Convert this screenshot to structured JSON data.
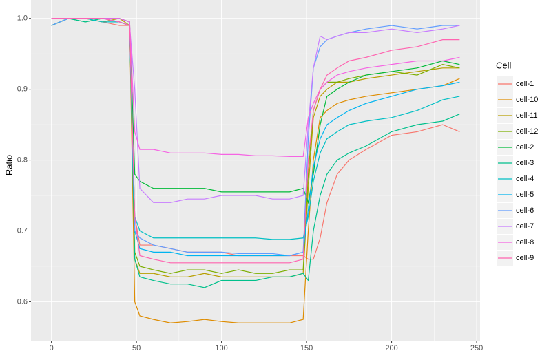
{
  "chart_data": {
    "type": "line",
    "y_label": "Ratio",
    "legend_title": "Cell",
    "legend_position": "right",
    "grid": true,
    "x": [
      0,
      10,
      20,
      30,
      40,
      46,
      49,
      52,
      60,
      70,
      80,
      90,
      100,
      110,
      120,
      130,
      140,
      148,
      151,
      154,
      158,
      162,
      168,
      175,
      185,
      200,
      215,
      230,
      240
    ],
    "xlim": [
      -12,
      252
    ],
    "xticks": [
      0,
      50,
      100,
      150,
      200,
      250
    ],
    "x_minor_ticks": [
      25,
      75,
      125,
      175,
      225
    ],
    "ylim": [
      0.545,
      1.026
    ],
    "yticks": [
      0.6,
      0.7,
      0.8,
      0.9,
      {
        "value": 1,
        "label": "1.0"
      }
    ],
    "y_minor_ticks": [
      0.65,
      0.75,
      0.85,
      0.95
    ],
    "series": [
      {
        "name": "cell-1",
        "color": "#F8766D",
        "values": [
          0.99,
          1.0,
          1.0,
          0.995,
          0.99,
          0.99,
          0.72,
          0.68,
          0.68,
          0.675,
          0.67,
          0.67,
          0.67,
          0.665,
          0.665,
          0.665,
          0.665,
          0.665,
          0.66,
          0.66,
          0.69,
          0.74,
          0.78,
          0.8,
          0.815,
          0.835,
          0.84,
          0.85,
          0.84
        ]
      },
      {
        "name": "cell-10",
        "color": "#DE8C00",
        "values": [
          0.99,
          1.0,
          1.0,
          1.0,
          0.995,
          0.99,
          0.6,
          0.58,
          0.575,
          0.57,
          0.572,
          0.575,
          0.572,
          0.57,
          0.57,
          0.57,
          0.57,
          0.575,
          0.7,
          0.8,
          0.86,
          0.87,
          0.88,
          0.885,
          0.89,
          0.895,
          0.9,
          0.905,
          0.915
        ]
      },
      {
        "name": "cell-11",
        "color": "#B79F00",
        "values": [
          0.99,
          1.0,
          1.0,
          0.995,
          1.0,
          0.99,
          0.66,
          0.64,
          0.64,
          0.635,
          0.635,
          0.64,
          0.635,
          0.635,
          0.635,
          0.635,
          0.635,
          0.64,
          0.76,
          0.86,
          0.89,
          0.9,
          0.91,
          0.91,
          0.915,
          0.92,
          0.925,
          0.93,
          0.93
        ]
      },
      {
        "name": "cell-12",
        "color": "#7CAE00",
        "values": [
          1.0,
          1.0,
          1.0,
          1.0,
          1.0,
          0.995,
          0.67,
          0.65,
          0.645,
          0.64,
          0.645,
          0.645,
          0.64,
          0.645,
          0.64,
          0.64,
          0.645,
          0.645,
          0.78,
          0.87,
          0.9,
          0.91,
          0.91,
          0.915,
          0.92,
          0.925,
          0.92,
          0.935,
          0.93
        ]
      },
      {
        "name": "cell-2",
        "color": "#00BA38",
        "values": [
          0.99,
          1.0,
          0.995,
          1.0,
          1.0,
          0.995,
          0.78,
          0.77,
          0.76,
          0.76,
          0.76,
          0.76,
          0.755,
          0.755,
          0.755,
          0.755,
          0.755,
          0.76,
          0.74,
          0.78,
          0.85,
          0.89,
          0.9,
          0.91,
          0.92,
          0.925,
          0.93,
          0.94,
          0.935
        ]
      },
      {
        "name": "cell-3",
        "color": "#00C08B",
        "values": [
          0.99,
          1.0,
          0.995,
          1.0,
          0.995,
          0.99,
          0.66,
          0.635,
          0.63,
          0.625,
          0.625,
          0.62,
          0.63,
          0.63,
          0.63,
          0.635,
          0.635,
          0.64,
          0.63,
          0.7,
          0.75,
          0.78,
          0.8,
          0.81,
          0.82,
          0.84,
          0.85,
          0.855,
          0.865
        ]
      },
      {
        "name": "cell-4",
        "color": "#00BFC4",
        "values": [
          0.99,
          1.0,
          1.0,
          0.995,
          0.995,
          0.99,
          0.72,
          0.7,
          0.69,
          0.69,
          0.69,
          0.69,
          0.69,
          0.69,
          0.69,
          0.688,
          0.688,
          0.69,
          0.72,
          0.77,
          0.81,
          0.83,
          0.84,
          0.85,
          0.855,
          0.86,
          0.87,
          0.885,
          0.89
        ]
      },
      {
        "name": "cell-5",
        "color": "#00B4F0",
        "values": [
          1.0,
          1.0,
          1.0,
          1.0,
          0.995,
          0.99,
          0.7,
          0.675,
          0.67,
          0.67,
          0.665,
          0.665,
          0.665,
          0.665,
          0.665,
          0.665,
          0.665,
          0.67,
          0.73,
          0.79,
          0.83,
          0.85,
          0.86,
          0.87,
          0.88,
          0.89,
          0.9,
          0.905,
          0.91
        ]
      },
      {
        "name": "cell-6",
        "color": "#619CFF",
        "values": [
          0.99,
          1.0,
          1.0,
          1.0,
          1.0,
          0.995,
          0.7,
          0.69,
          0.68,
          0.675,
          0.67,
          0.67,
          0.67,
          0.668,
          0.668,
          0.668,
          0.665,
          0.67,
          0.83,
          0.93,
          0.96,
          0.97,
          0.975,
          0.98,
          0.985,
          0.99,
          0.985,
          0.99,
          0.99
        ]
      },
      {
        "name": "cell-7",
        "color": "#C77CFF",
        "values": [
          1.0,
          1.0,
          1.0,
          1.0,
          0.995,
          0.99,
          0.9,
          0.76,
          0.74,
          0.74,
          0.745,
          0.745,
          0.75,
          0.75,
          0.75,
          0.745,
          0.745,
          0.75,
          0.85,
          0.93,
          0.975,
          0.97,
          0.975,
          0.98,
          0.98,
          0.985,
          0.98,
          0.985,
          0.99
        ]
      },
      {
        "name": "cell-8",
        "color": "#F564E3",
        "values": [
          1.0,
          1.0,
          1.0,
          1.0,
          1.0,
          0.995,
          0.84,
          0.815,
          0.815,
          0.81,
          0.81,
          0.81,
          0.808,
          0.808,
          0.806,
          0.806,
          0.805,
          0.805,
          0.86,
          0.88,
          0.9,
          0.91,
          0.92,
          0.925,
          0.93,
          0.935,
          0.94,
          0.94,
          0.945
        ]
      },
      {
        "name": "cell-9",
        "color": "#FF64B0",
        "values": [
          1.0,
          1.0,
          1.0,
          1.0,
          0.995,
          0.99,
          0.72,
          0.665,
          0.66,
          0.655,
          0.655,
          0.655,
          0.655,
          0.655,
          0.655,
          0.655,
          0.655,
          0.66,
          0.8,
          0.87,
          0.9,
          0.92,
          0.93,
          0.94,
          0.945,
          0.955,
          0.96,
          0.97,
          0.97
        ]
      }
    ]
  }
}
